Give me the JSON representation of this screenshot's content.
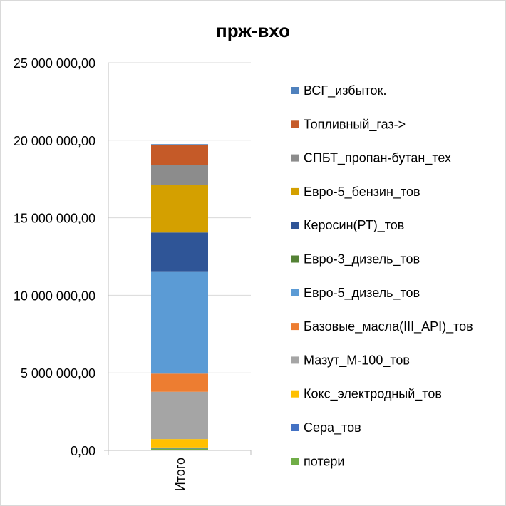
{
  "chart_data": {
    "type": "bar",
    "stacked": true,
    "title": "прж-вхо",
    "categories": [
      "Итого"
    ],
    "ylim": [
      0,
      25000000
    ],
    "yticks": [
      0,
      5000000,
      10000000,
      15000000,
      20000000,
      25000000
    ],
    "ytick_labels": [
      "0,00",
      "5 000 000,00",
      "10 000 000,00",
      "15 000 000,00",
      "20 000 000,00",
      "25 000 000,00"
    ],
    "grid": true,
    "legend_position": "right",
    "series": [
      {
        "name": "потери",
        "color": "#70ad47",
        "values": [
          120000
        ]
      },
      {
        "name": "Сера_тов",
        "color": "#4472c4",
        "values": [
          70000
        ]
      },
      {
        "name": "Кокс_электродный_тов",
        "color": "#ffc000",
        "values": [
          540000
        ]
      },
      {
        "name": "Мазут_М-100_тов",
        "color": "#a5a5a5",
        "values": [
          3050000
        ]
      },
      {
        "name": "Базовые_масла(III_API)_тов",
        "color": "#ed7d31",
        "values": [
          1170000
        ]
      },
      {
        "name": "Евро-5_дизель_тов",
        "color": "#5b9bd5",
        "values": [
          6600000
        ]
      },
      {
        "name": "Евро-3_дизель_тов",
        "color": "#548235",
        "values": [
          0
        ]
      },
      {
        "name": "Керосин(РТ)_тов",
        "color": "#2f5597",
        "values": [
          2500000
        ]
      },
      {
        "name": "Евро-5_бензин_тов",
        "color": "#d4a000",
        "values": [
          3050000
        ]
      },
      {
        "name": "СПБТ_пропан-бутан_тех",
        "color": "#8c8c8c",
        "values": [
          1300000
        ]
      },
      {
        "name": "Топливный_газ->",
        "color": "#c55a28",
        "values": [
          1300000
        ]
      },
      {
        "name": "ВСГ_избыток.",
        "color": "#4f81bd",
        "values": [
          50000
        ]
      }
    ]
  }
}
